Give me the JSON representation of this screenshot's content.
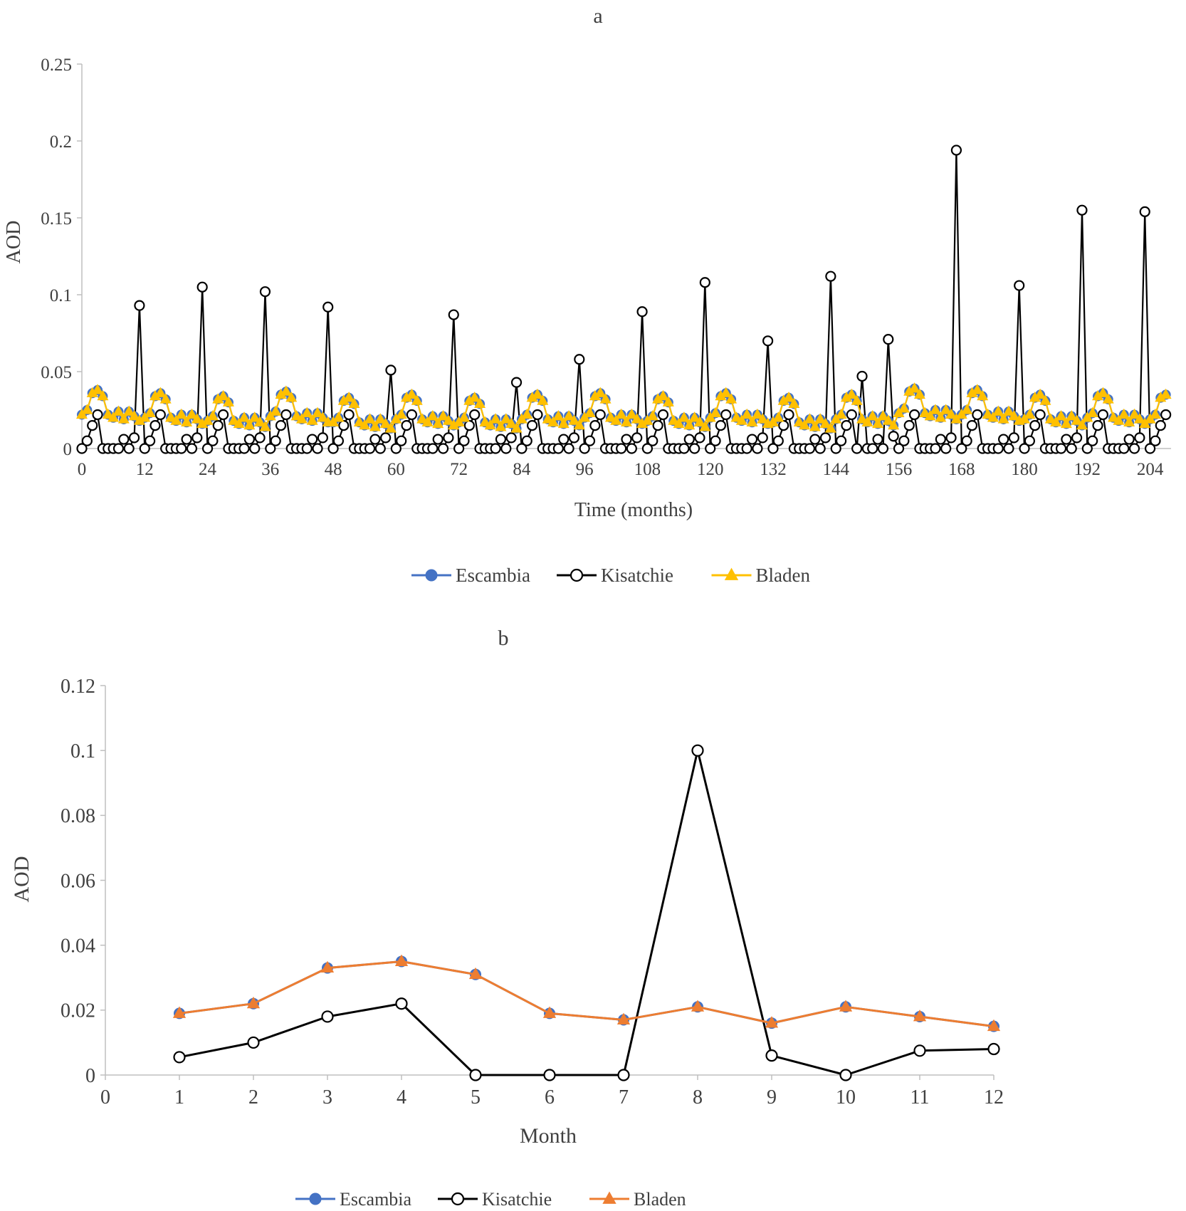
{
  "chart_data": [
    {
      "type": "line",
      "panel": "a",
      "title": "a",
      "xlabel": "Time (months)",
      "ylabel": "AOD",
      "xlim": [
        0,
        208
      ],
      "ylim": [
        0,
        0.25
      ],
      "xticks": [
        0,
        12,
        24,
        36,
        48,
        60,
        72,
        84,
        96,
        108,
        120,
        132,
        144,
        156,
        168,
        180,
        192,
        204
      ],
      "xtick_labels": [
        "0",
        "12",
        "24",
        "36",
        "48",
        "60",
        "72",
        "84",
        "96",
        "108",
        "120",
        "132",
        "144",
        "156",
        "168",
        "180",
        "192",
        "204"
      ],
      "yticks": [
        0,
        0.05,
        0.1,
        0.15,
        0.2,
        0.25
      ],
      "ytick_labels": [
        "0",
        "0.05",
        "0.1",
        "0.15",
        "0.2",
        "0.25"
      ],
      "legend_position": "bottom",
      "series": [
        {
          "name": "Escambia",
          "color": "#4472C4",
          "marker": "circle-filled",
          "monthly_pattern": [
            0.019,
            0.022,
            0.033,
            0.035,
            0.031,
            0.019,
            0.017,
            0.021,
            0.016,
            0.021,
            0.018,
            0.015
          ],
          "year_offsets": [
            0.003,
            0.001,
            -0.001,
            0.002,
            -0.002,
            0.0,
            -0.002,
            0.0,
            0.001,
            -0.001,
            0.001,
            -0.002,
            0.0,
            0.004,
            0.003,
            0.0,
            0.001,
            0.0
          ]
        },
        {
          "name": "Kisatchie",
          "color": "#000000",
          "marker": "circle-open",
          "peaks": [
            [
              11,
              0.093
            ],
            [
              23,
              0.105
            ],
            [
              35,
              0.102
            ],
            [
              47,
              0.092
            ],
            [
              59,
              0.051
            ],
            [
              71,
              0.087
            ],
            [
              83,
              0.043
            ],
            [
              95,
              0.058
            ],
            [
              107,
              0.089
            ],
            [
              119,
              0.108
            ],
            [
              131,
              0.07
            ],
            [
              143,
              0.112
            ],
            [
              149,
              0.047
            ],
            [
              154,
              0.071
            ],
            [
              167,
              0.194
            ],
            [
              179,
              0.106
            ],
            [
              191,
              0.155
            ],
            [
              203,
              0.154
            ]
          ],
          "baseline_pattern": [
            0.0,
            0.005,
            0.015,
            0.022,
            0.0,
            0.0,
            0.0,
            0.0,
            0.006,
            0.0,
            0.007,
            0.008
          ]
        },
        {
          "name": "Bladen",
          "color": "#FFC000",
          "marker": "triangle",
          "monthly_pattern": [
            0.019,
            0.022,
            0.033,
            0.035,
            0.031,
            0.019,
            0.017,
            0.021,
            0.016,
            0.021,
            0.018,
            0.015
          ],
          "year_offsets": [
            0.003,
            0.001,
            -0.001,
            0.002,
            -0.002,
            0.0,
            -0.002,
            0.0,
            0.001,
            -0.001,
            0.001,
            -0.002,
            0.0,
            0.004,
            0.003,
            0.0,
            0.001,
            0.0
          ]
        }
      ]
    },
    {
      "type": "line",
      "panel": "b",
      "title": "b",
      "xlabel": "Month",
      "ylabel": "AOD",
      "xlim": [
        0,
        12
      ],
      "ylim": [
        0,
        0.12
      ],
      "xticks": [
        0,
        1,
        2,
        3,
        4,
        5,
        6,
        7,
        8,
        9,
        10,
        11,
        12
      ],
      "xtick_labels": [
        "0",
        "1",
        "2",
        "3",
        "4",
        "5",
        "6",
        "7",
        "8",
        "9",
        "10",
        "11",
        "12"
      ],
      "yticks": [
        0,
        0.02,
        0.04,
        0.06,
        0.08,
        0.1,
        0.12
      ],
      "ytick_labels": [
        "0",
        "0.02",
        "0.04",
        "0.06",
        "0.08",
        "0.1",
        "0.12"
      ],
      "x": [
        1,
        2,
        3,
        4,
        5,
        6,
        7,
        8,
        9,
        10,
        11,
        12
      ],
      "legend_position": "bottom",
      "series": [
        {
          "name": "Escambia",
          "color": "#4472C4",
          "marker": "circle-filled",
          "values": [
            0.019,
            0.022,
            0.033,
            0.035,
            0.031,
            0.019,
            0.017,
            0.021,
            0.016,
            0.021,
            0.018,
            0.015
          ]
        },
        {
          "name": "Kisatchie",
          "color": "#000000",
          "marker": "circle-open",
          "values": [
            0.0055,
            0.01,
            0.018,
            0.022,
            0.0,
            0.0,
            0.0,
            0.1,
            0.006,
            0.0,
            0.0075,
            0.008
          ]
        },
        {
          "name": "Bladen",
          "color": "#ED7D31",
          "marker": "triangle",
          "values": [
            0.019,
            0.022,
            0.033,
            0.035,
            0.031,
            0.019,
            0.017,
            0.021,
            0.016,
            0.021,
            0.018,
            0.015
          ]
        }
      ]
    }
  ]
}
